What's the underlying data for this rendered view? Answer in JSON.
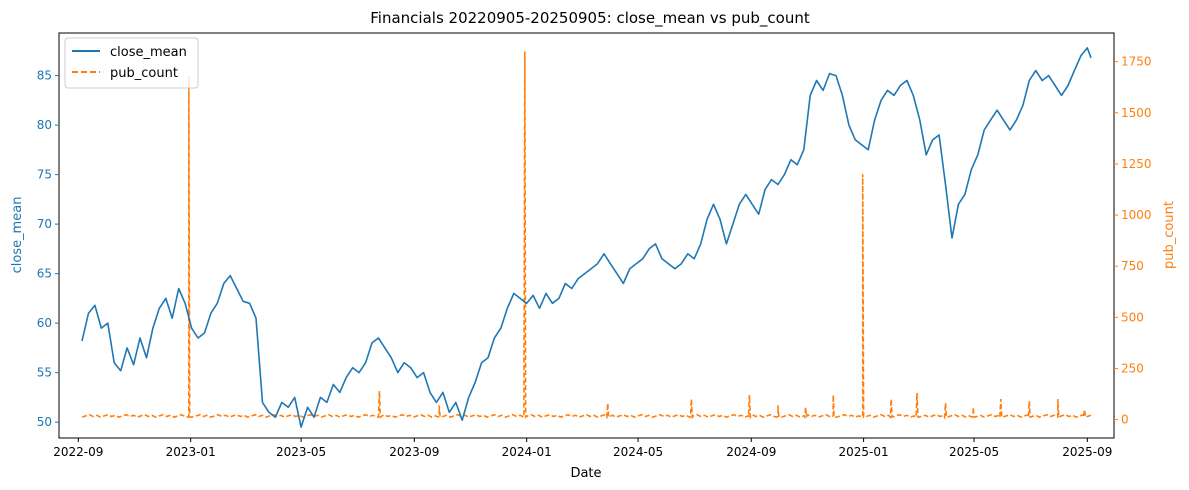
{
  "chart_data": {
    "type": "line",
    "title": "Financials 20220905-20250905: close_mean vs pub_count",
    "xlabel": "Date",
    "ylabel_left": "close_mean",
    "ylabel_right": "pub_count",
    "x_ticks": [
      "2022-09",
      "2023-01",
      "2023-05",
      "2023-09",
      "2024-01",
      "2024-05",
      "2024-09",
      "2025-01",
      "2025-05",
      "2025-09"
    ],
    "y_left_ticks": [
      50,
      55,
      60,
      65,
      70,
      75,
      80,
      85
    ],
    "y_right_ticks": [
      0,
      250,
      500,
      750,
      1000,
      1250,
      1500,
      1750
    ],
    "x_range": [
      "2022-08-11",
      "2025-09-30"
    ],
    "ylim_left": [
      48.4,
      89.3
    ],
    "ylim_right": [
      -90,
      1890
    ],
    "grid": false,
    "legend_position": "top-left",
    "colors": {
      "close_mean": "#1f77b4",
      "pub_count": "#ff7f0e"
    },
    "series": [
      {
        "name": "close_mean",
        "axis": "left",
        "style": "solid",
        "points": [
          [
            "2022-09-05",
            58.2
          ],
          [
            "2022-09-12",
            61.0
          ],
          [
            "2022-09-19",
            61.8
          ],
          [
            "2022-09-26",
            59.5
          ],
          [
            "2022-10-03",
            60.0
          ],
          [
            "2022-10-10",
            56.0
          ],
          [
            "2022-10-17",
            55.2
          ],
          [
            "2022-10-24",
            57.5
          ],
          [
            "2022-10-31",
            55.8
          ],
          [
            "2022-11-07",
            58.5
          ],
          [
            "2022-11-14",
            56.5
          ],
          [
            "2022-11-21",
            59.5
          ],
          [
            "2022-11-28",
            61.5
          ],
          [
            "2022-12-05",
            62.5
          ],
          [
            "2022-12-12",
            60.5
          ],
          [
            "2022-12-19",
            63.5
          ],
          [
            "2022-12-26",
            62.0
          ],
          [
            "2023-01-02",
            59.5
          ],
          [
            "2023-01-09",
            58.5
          ],
          [
            "2023-01-16",
            59.0
          ],
          [
            "2023-01-23",
            61.0
          ],
          [
            "2023-01-30",
            62.0
          ],
          [
            "2023-02-06",
            64.0
          ],
          [
            "2023-02-13",
            64.8
          ],
          [
            "2023-02-20",
            63.5
          ],
          [
            "2023-02-27",
            62.2
          ],
          [
            "2023-03-06",
            62.0
          ],
          [
            "2023-03-13",
            60.5
          ],
          [
            "2023-03-20",
            52.0
          ],
          [
            "2023-03-27",
            51.0
          ],
          [
            "2023-04-03",
            50.5
          ],
          [
            "2023-04-10",
            52.0
          ],
          [
            "2023-04-17",
            51.5
          ],
          [
            "2023-04-24",
            52.5
          ],
          [
            "2023-05-01",
            49.5
          ],
          [
            "2023-05-08",
            51.5
          ],
          [
            "2023-05-15",
            50.5
          ],
          [
            "2023-05-22",
            52.5
          ],
          [
            "2023-05-29",
            52.0
          ],
          [
            "2023-06-05",
            53.8
          ],
          [
            "2023-06-12",
            53.0
          ],
          [
            "2023-06-19",
            54.5
          ],
          [
            "2023-06-26",
            55.5
          ],
          [
            "2023-07-03",
            55.0
          ],
          [
            "2023-07-10",
            56.0
          ],
          [
            "2023-07-17",
            58.0
          ],
          [
            "2023-07-24",
            58.5
          ],
          [
            "2023-07-31",
            57.5
          ],
          [
            "2023-08-07",
            56.5
          ],
          [
            "2023-08-14",
            55.0
          ],
          [
            "2023-08-21",
            56.0
          ],
          [
            "2023-08-28",
            55.5
          ],
          [
            "2023-09-04",
            54.5
          ],
          [
            "2023-09-11",
            55.0
          ],
          [
            "2023-09-18",
            53.0
          ],
          [
            "2023-09-25",
            52.0
          ],
          [
            "2023-10-02",
            53.0
          ],
          [
            "2023-10-09",
            51.0
          ],
          [
            "2023-10-16",
            52.0
          ],
          [
            "2023-10-23",
            50.2
          ],
          [
            "2023-10-30",
            52.5
          ],
          [
            "2023-11-06",
            54.0
          ],
          [
            "2023-11-13",
            56.0
          ],
          [
            "2023-11-20",
            56.5
          ],
          [
            "2023-11-27",
            58.5
          ],
          [
            "2023-12-04",
            59.5
          ],
          [
            "2023-12-11",
            61.5
          ],
          [
            "2023-12-18",
            63.0
          ],
          [
            "2023-12-25",
            62.5
          ],
          [
            "2024-01-01",
            62.0
          ],
          [
            "2024-01-08",
            62.8
          ],
          [
            "2024-01-15",
            61.5
          ],
          [
            "2024-01-22",
            63.0
          ],
          [
            "2024-01-29",
            62.0
          ],
          [
            "2024-02-05",
            62.5
          ],
          [
            "2024-02-12",
            64.0
          ],
          [
            "2024-02-19",
            63.5
          ],
          [
            "2024-02-26",
            64.5
          ],
          [
            "2024-03-04",
            65.0
          ],
          [
            "2024-03-11",
            65.5
          ],
          [
            "2024-03-18",
            66.0
          ],
          [
            "2024-03-25",
            67.0
          ],
          [
            "2024-04-01",
            66.0
          ],
          [
            "2024-04-08",
            65.0
          ],
          [
            "2024-04-15",
            64.0
          ],
          [
            "2024-04-22",
            65.5
          ],
          [
            "2024-04-29",
            66.0
          ],
          [
            "2024-05-06",
            66.5
          ],
          [
            "2024-05-13",
            67.5
          ],
          [
            "2024-05-20",
            68.0
          ],
          [
            "2024-05-27",
            66.5
          ],
          [
            "2024-06-03",
            66.0
          ],
          [
            "2024-06-10",
            65.5
          ],
          [
            "2024-06-17",
            66.0
          ],
          [
            "2024-06-24",
            67.0
          ],
          [
            "2024-07-01",
            66.5
          ],
          [
            "2024-07-08",
            68.0
          ],
          [
            "2024-07-15",
            70.5
          ],
          [
            "2024-07-22",
            72.0
          ],
          [
            "2024-07-29",
            70.5
          ],
          [
            "2024-08-05",
            68.0
          ],
          [
            "2024-08-12",
            70.0
          ],
          [
            "2024-08-19",
            72.0
          ],
          [
            "2024-08-26",
            73.0
          ],
          [
            "2024-09-02",
            72.0
          ],
          [
            "2024-09-09",
            71.0
          ],
          [
            "2024-09-16",
            73.5
          ],
          [
            "2024-09-23",
            74.5
          ],
          [
            "2024-09-30",
            74.0
          ],
          [
            "2024-10-07",
            75.0
          ],
          [
            "2024-10-14",
            76.5
          ],
          [
            "2024-10-21",
            76.0
          ],
          [
            "2024-10-28",
            77.5
          ],
          [
            "2024-11-04",
            83.0
          ],
          [
            "2024-11-11",
            84.5
          ],
          [
            "2024-11-18",
            83.5
          ],
          [
            "2024-11-25",
            85.2
          ],
          [
            "2024-12-02",
            85.0
          ],
          [
            "2024-12-09",
            83.0
          ],
          [
            "2024-12-16",
            80.0
          ],
          [
            "2024-12-23",
            78.5
          ],
          [
            "2024-12-30",
            78.0
          ],
          [
            "2025-01-06",
            77.5
          ],
          [
            "2025-01-13",
            80.5
          ],
          [
            "2025-01-20",
            82.5
          ],
          [
            "2025-01-27",
            83.5
          ],
          [
            "2025-02-03",
            83.0
          ],
          [
            "2025-02-10",
            84.0
          ],
          [
            "2025-02-17",
            84.5
          ],
          [
            "2025-02-24",
            83.0
          ],
          [
            "2025-03-03",
            80.5
          ],
          [
            "2025-03-10",
            77.0
          ],
          [
            "2025-03-17",
            78.5
          ],
          [
            "2025-03-24",
            79.0
          ],
          [
            "2025-03-31",
            74.0
          ],
          [
            "2025-04-07",
            68.6
          ],
          [
            "2025-04-14",
            72.0
          ],
          [
            "2025-04-21",
            73.0
          ],
          [
            "2025-04-28",
            75.5
          ],
          [
            "2025-05-05",
            77.0
          ],
          [
            "2025-05-12",
            79.5
          ],
          [
            "2025-05-19",
            80.5
          ],
          [
            "2025-05-26",
            81.5
          ],
          [
            "2025-06-02",
            80.5
          ],
          [
            "2025-06-09",
            79.5
          ],
          [
            "2025-06-16",
            80.5
          ],
          [
            "2025-06-23",
            82.0
          ],
          [
            "2025-06-30",
            84.5
          ],
          [
            "2025-07-07",
            85.5
          ],
          [
            "2025-07-14",
            84.5
          ],
          [
            "2025-07-21",
            85.0
          ],
          [
            "2025-07-28",
            84.0
          ],
          [
            "2025-08-04",
            83.0
          ],
          [
            "2025-08-11",
            84.0
          ],
          [
            "2025-08-18",
            85.5
          ],
          [
            "2025-08-25",
            87.0
          ],
          [
            "2025-09-01",
            87.8
          ],
          [
            "2025-09-05",
            86.8
          ]
        ]
      },
      {
        "name": "pub_count",
        "axis": "right",
        "style": "dashed",
        "baseline": 12,
        "spikes": [
          [
            "2022-12-30",
            1680
          ],
          [
            "2023-07-25",
            140
          ],
          [
            "2023-09-28",
            70
          ],
          [
            "2023-12-30",
            1800
          ],
          [
            "2024-03-29",
            80
          ],
          [
            "2024-06-28",
            100
          ],
          [
            "2024-08-30",
            120
          ],
          [
            "2024-09-30",
            70
          ],
          [
            "2024-10-30",
            60
          ],
          [
            "2024-11-29",
            120
          ],
          [
            "2024-12-31",
            1200
          ],
          [
            "2025-01-31",
            100
          ],
          [
            "2025-02-28",
            130
          ],
          [
            "2025-03-31",
            80
          ],
          [
            "2025-04-30",
            60
          ],
          [
            "2025-05-30",
            100
          ],
          [
            "2025-06-30",
            90
          ],
          [
            "2025-07-31",
            100
          ],
          [
            "2025-08-29",
            50
          ]
        ]
      }
    ]
  }
}
